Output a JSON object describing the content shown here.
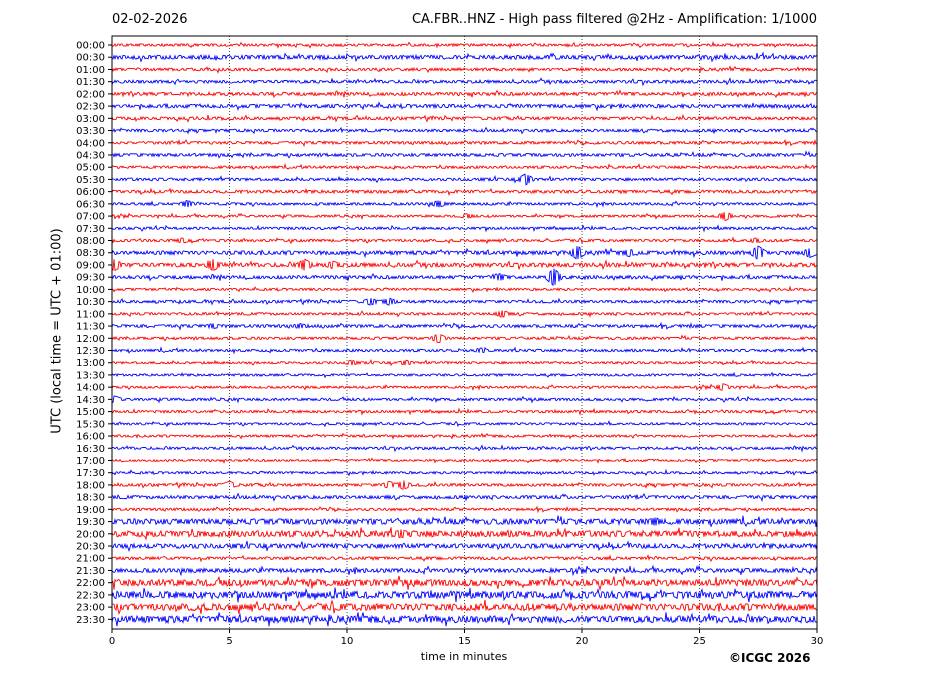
{
  "header": {
    "date": "02-02-2026",
    "title": "CA.FBR..HNZ - High pass filtered @2Hz - Amplification: 1/1000"
  },
  "copyright": "©ICGC 2026",
  "colors": {
    "odd_trace": "#ff0000",
    "even_trace": "#0000ff",
    "grid": "#000000"
  },
  "chart_data": {
    "type": "line",
    "title": "CA.FBR..HNZ - High pass filtered @2Hz - Amplification: 1/1000",
    "xlabel": "time in minutes",
    "ylabel": "UTC (local time = UTC + 01:00)",
    "xlim": [
      0,
      30
    ],
    "xticks": [
      "0",
      "5",
      "10",
      "15",
      "20",
      "25",
      "30"
    ],
    "grid": "vertical dotted lines at 5-minute intervals",
    "rows": [
      "00:00",
      "00:30",
      "01:00",
      "01:30",
      "02:00",
      "02:30",
      "03:00",
      "03:30",
      "04:00",
      "04:30",
      "05:00",
      "05:30",
      "06:00",
      "06:30",
      "07:00",
      "07:30",
      "08:00",
      "08:30",
      "09:00",
      "09:30",
      "10:00",
      "10:30",
      "11:00",
      "11:30",
      "12:00",
      "12:30",
      "13:00",
      "13:30",
      "14:00",
      "14:30",
      "15:00",
      "15:30",
      "16:00",
      "16:30",
      "17:00",
      "17:30",
      "18:00",
      "18:30",
      "19:00",
      "19:30",
      "20:00",
      "20:30",
      "21:00",
      "21:30",
      "22:00",
      "22:30",
      "23:00",
      "23:30"
    ],
    "trace_colors": [
      "#ff0000",
      "#0000ff"
    ],
    "noise_level": [
      1.0,
      1.6,
      1.1,
      1.2,
      1.3,
      1.4,
      1.2,
      1.1,
      1.1,
      1.2,
      1.0,
      1.1,
      1.2,
      1.0,
      0.9,
      1.0,
      1.0,
      1.5,
      1.6,
      1.3,
      0.9,
      1.1,
      1.0,
      1.2,
      1.0,
      1.0,
      0.9,
      0.9,
      0.9,
      1.0,
      1.0,
      0.9,
      0.9,
      1.0,
      0.8,
      0.9,
      1.1,
      1.3,
      1.0,
      2.2,
      2.4,
      1.8,
      1.1,
      1.6,
      2.6,
      2.8,
      2.7,
      2.7
    ],
    "events": [
      {
        "row": "05:30",
        "minute": 17.6,
        "amp": 5
      },
      {
        "row": "06:30",
        "minute": 3.2,
        "amp": 3
      },
      {
        "row": "06:30",
        "minute": 13.9,
        "amp": 3
      },
      {
        "row": "07:00",
        "minute": 26.1,
        "amp": 4
      },
      {
        "row": "07:00",
        "minute": 15.1,
        "amp": 2
      },
      {
        "row": "08:00",
        "minute": 3.0,
        "amp": 2
      },
      {
        "row": "08:00",
        "minute": 27.4,
        "amp": 2
      },
      {
        "row": "08:30",
        "minute": 19.8,
        "amp": 6
      },
      {
        "row": "08:30",
        "minute": 22.0,
        "amp": 3
      },
      {
        "row": "08:30",
        "minute": 27.5,
        "amp": 6
      },
      {
        "row": "08:30",
        "minute": 29.7,
        "amp": 4
      },
      {
        "row": "09:00",
        "minute": 0.1,
        "amp": 5
      },
      {
        "row": "09:00",
        "minute": 4.3,
        "amp": 5
      },
      {
        "row": "09:00",
        "minute": 8.2,
        "amp": 5
      },
      {
        "row": "09:00",
        "minute": 9.4,
        "amp": 3
      },
      {
        "row": "09:30",
        "minute": 18.8,
        "amp": 8
      },
      {
        "row": "09:30",
        "minute": 16.5,
        "amp": 3
      },
      {
        "row": "10:30",
        "minute": 11.0,
        "amp": 3
      },
      {
        "row": "10:30",
        "minute": 11.8,
        "amp": 3
      },
      {
        "row": "11:00",
        "minute": 16.6,
        "amp": 3
      },
      {
        "row": "11:30",
        "minute": 8.0,
        "amp": 2
      },
      {
        "row": "11:30",
        "minute": 4.3,
        "amp": 2
      },
      {
        "row": "12:00",
        "minute": 13.9,
        "amp": 4
      },
      {
        "row": "12:30",
        "minute": 15.7,
        "amp": 2
      },
      {
        "row": "13:00",
        "minute": 10.2,
        "amp": 2
      },
      {
        "row": "13:00",
        "minute": 12.5,
        "amp": 2
      },
      {
        "row": "14:00",
        "minute": 26.0,
        "amp": 3
      },
      {
        "row": "14:30",
        "minute": 0.1,
        "amp": 3
      },
      {
        "row": "18:00",
        "minute": 5.0,
        "amp": 3
      },
      {
        "row": "18:00",
        "minute": 12.4,
        "amp": 4
      },
      {
        "row": "18:00",
        "minute": 11.8,
        "amp": 3
      },
      {
        "row": "20:00",
        "minute": 12.3,
        "amp": 3
      },
      {
        "row": "19:30",
        "minute": 23.1,
        "amp": 3
      }
    ]
  }
}
